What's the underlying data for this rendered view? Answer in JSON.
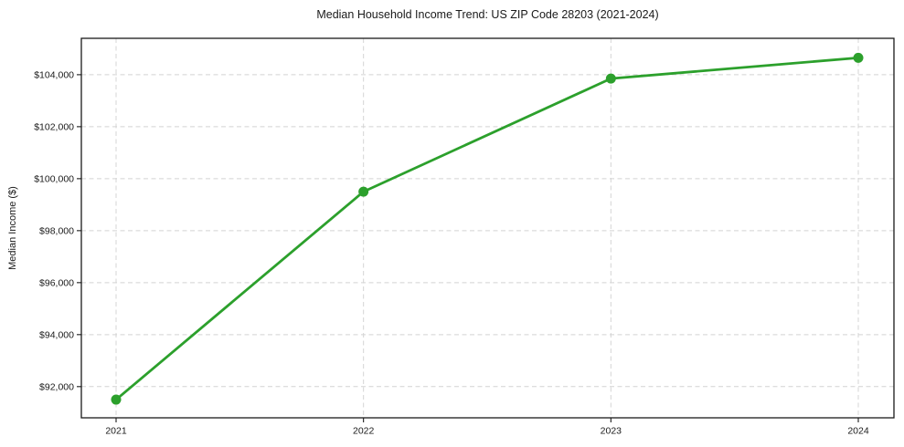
{
  "chart_data": {
    "type": "line",
    "title": "Median Household Income Trend: US ZIP Code 28203 (2021-2024)",
    "xlabel": "",
    "ylabel": "Median Income ($)",
    "categories": [
      "2021",
      "2022",
      "2023",
      "2024"
    ],
    "series": [
      {
        "name": "Median Household Income",
        "values": [
          91500,
          99500,
          103850,
          104650
        ],
        "color": "#2ca02c",
        "marker": "circle",
        "line_width": 2.8,
        "marker_radius": 5.5
      }
    ],
    "ylim": [
      90800,
      105400
    ],
    "yticks": [
      92000,
      94000,
      96000,
      98000,
      100000,
      102000,
      104000
    ],
    "ytick_labels": [
      "$92,000",
      "$94,000",
      "$96,000",
      "$98,000",
      "$100,000",
      "$102,000",
      "$104,000"
    ],
    "grid": true,
    "grid_style": "dashed",
    "legend_position": "none",
    "background": "#ffffff"
  },
  "colors": {
    "line": "#2ca02c",
    "grid": "#d4d4d4",
    "spine": "#1a1a1a",
    "text": "#1a1a1a",
    "background": "#ffffff"
  }
}
